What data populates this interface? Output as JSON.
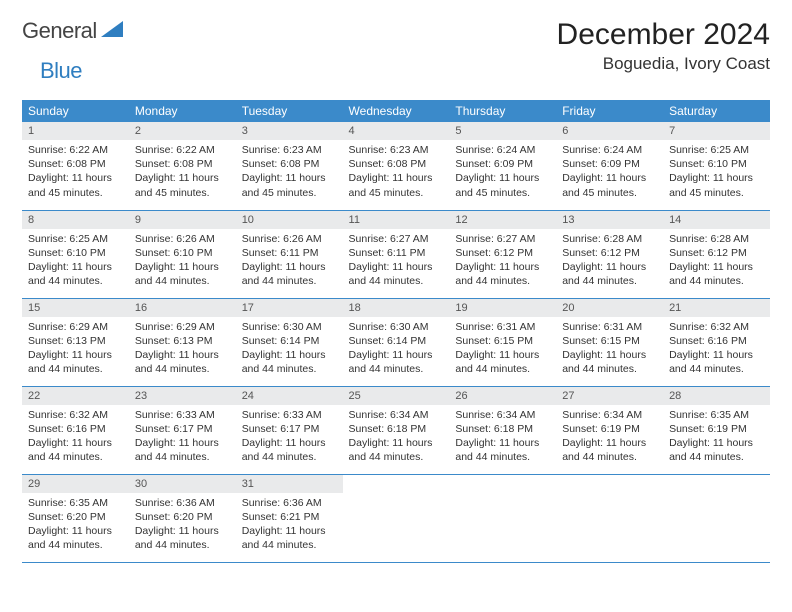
{
  "logo": {
    "text1": "General",
    "text2": "Blue"
  },
  "title": "December 2024",
  "location": "Boguedia, Ivory Coast",
  "colors": {
    "header_bg": "#3b8aca",
    "header_text": "#ffffff",
    "daynum_bg": "#e9eaeb",
    "border": "#3b8aca",
    "logo_blue": "#2f7ec0"
  },
  "daysOfWeek": [
    "Sunday",
    "Monday",
    "Tuesday",
    "Wednesday",
    "Thursday",
    "Friday",
    "Saturday"
  ],
  "weeks": [
    [
      {
        "day": "1",
        "sunrise": "6:22 AM",
        "sunset": "6:08 PM",
        "daylight": "11 hours and 45 minutes."
      },
      {
        "day": "2",
        "sunrise": "6:22 AM",
        "sunset": "6:08 PM",
        "daylight": "11 hours and 45 minutes."
      },
      {
        "day": "3",
        "sunrise": "6:23 AM",
        "sunset": "6:08 PM",
        "daylight": "11 hours and 45 minutes."
      },
      {
        "day": "4",
        "sunrise": "6:23 AM",
        "sunset": "6:08 PM",
        "daylight": "11 hours and 45 minutes."
      },
      {
        "day": "5",
        "sunrise": "6:24 AM",
        "sunset": "6:09 PM",
        "daylight": "11 hours and 45 minutes."
      },
      {
        "day": "6",
        "sunrise": "6:24 AM",
        "sunset": "6:09 PM",
        "daylight": "11 hours and 45 minutes."
      },
      {
        "day": "7",
        "sunrise": "6:25 AM",
        "sunset": "6:10 PM",
        "daylight": "11 hours and 45 minutes."
      }
    ],
    [
      {
        "day": "8",
        "sunrise": "6:25 AM",
        "sunset": "6:10 PM",
        "daylight": "11 hours and 44 minutes."
      },
      {
        "day": "9",
        "sunrise": "6:26 AM",
        "sunset": "6:10 PM",
        "daylight": "11 hours and 44 minutes."
      },
      {
        "day": "10",
        "sunrise": "6:26 AM",
        "sunset": "6:11 PM",
        "daylight": "11 hours and 44 minutes."
      },
      {
        "day": "11",
        "sunrise": "6:27 AM",
        "sunset": "6:11 PM",
        "daylight": "11 hours and 44 minutes."
      },
      {
        "day": "12",
        "sunrise": "6:27 AM",
        "sunset": "6:12 PM",
        "daylight": "11 hours and 44 minutes."
      },
      {
        "day": "13",
        "sunrise": "6:28 AM",
        "sunset": "6:12 PM",
        "daylight": "11 hours and 44 minutes."
      },
      {
        "day": "14",
        "sunrise": "6:28 AM",
        "sunset": "6:12 PM",
        "daylight": "11 hours and 44 minutes."
      }
    ],
    [
      {
        "day": "15",
        "sunrise": "6:29 AM",
        "sunset": "6:13 PM",
        "daylight": "11 hours and 44 minutes."
      },
      {
        "day": "16",
        "sunrise": "6:29 AM",
        "sunset": "6:13 PM",
        "daylight": "11 hours and 44 minutes."
      },
      {
        "day": "17",
        "sunrise": "6:30 AM",
        "sunset": "6:14 PM",
        "daylight": "11 hours and 44 minutes."
      },
      {
        "day": "18",
        "sunrise": "6:30 AM",
        "sunset": "6:14 PM",
        "daylight": "11 hours and 44 minutes."
      },
      {
        "day": "19",
        "sunrise": "6:31 AM",
        "sunset": "6:15 PM",
        "daylight": "11 hours and 44 minutes."
      },
      {
        "day": "20",
        "sunrise": "6:31 AM",
        "sunset": "6:15 PM",
        "daylight": "11 hours and 44 minutes."
      },
      {
        "day": "21",
        "sunrise": "6:32 AM",
        "sunset": "6:16 PM",
        "daylight": "11 hours and 44 minutes."
      }
    ],
    [
      {
        "day": "22",
        "sunrise": "6:32 AM",
        "sunset": "6:16 PM",
        "daylight": "11 hours and 44 minutes."
      },
      {
        "day": "23",
        "sunrise": "6:33 AM",
        "sunset": "6:17 PM",
        "daylight": "11 hours and 44 minutes."
      },
      {
        "day": "24",
        "sunrise": "6:33 AM",
        "sunset": "6:17 PM",
        "daylight": "11 hours and 44 minutes."
      },
      {
        "day": "25",
        "sunrise": "6:34 AM",
        "sunset": "6:18 PM",
        "daylight": "11 hours and 44 minutes."
      },
      {
        "day": "26",
        "sunrise": "6:34 AM",
        "sunset": "6:18 PM",
        "daylight": "11 hours and 44 minutes."
      },
      {
        "day": "27",
        "sunrise": "6:34 AM",
        "sunset": "6:19 PM",
        "daylight": "11 hours and 44 minutes."
      },
      {
        "day": "28",
        "sunrise": "6:35 AM",
        "sunset": "6:19 PM",
        "daylight": "11 hours and 44 minutes."
      }
    ],
    [
      {
        "day": "29",
        "sunrise": "6:35 AM",
        "sunset": "6:20 PM",
        "daylight": "11 hours and 44 minutes."
      },
      {
        "day": "30",
        "sunrise": "6:36 AM",
        "sunset": "6:20 PM",
        "daylight": "11 hours and 44 minutes."
      },
      {
        "day": "31",
        "sunrise": "6:36 AM",
        "sunset": "6:21 PM",
        "daylight": "11 hours and 44 minutes."
      },
      null,
      null,
      null,
      null
    ]
  ],
  "labels": {
    "sunrise": "Sunrise:",
    "sunset": "Sunset:",
    "daylight": "Daylight:"
  }
}
